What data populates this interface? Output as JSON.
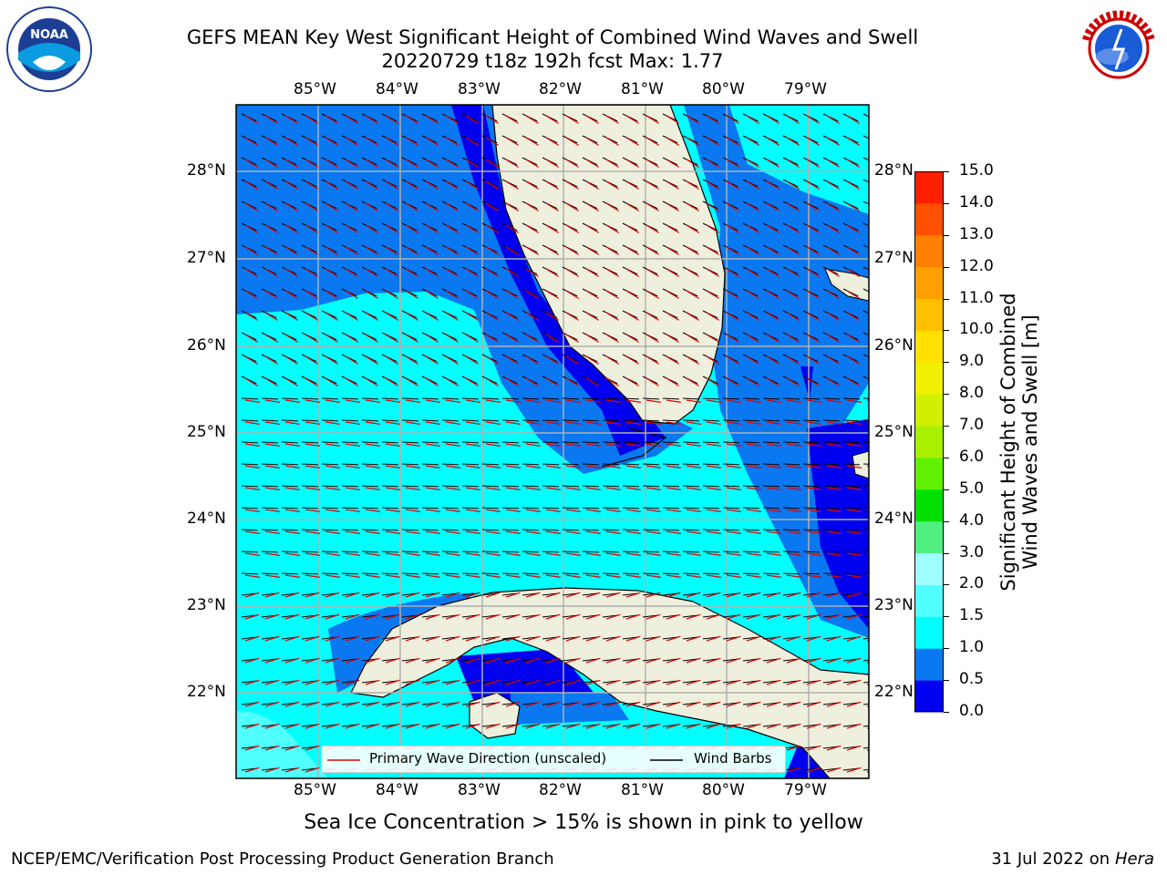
{
  "header": {
    "title_line1": "GEFS MEAN Key West Significant Height of Combined Wind Waves and Swell",
    "title_line2": "20220729 t18z 192h fcst   Max: 1.77"
  },
  "logos": {
    "left": "NOAA",
    "right": "NATIONAL WEATHER SERVICE"
  },
  "map": {
    "lon_labels": [
      "85°W",
      "84°W",
      "83°W",
      "82°W",
      "81°W",
      "80°W",
      "79°W"
    ],
    "lat_labels": [
      "28°N",
      "27°N",
      "26°N",
      "25°N",
      "24°N",
      "23°N",
      "22°N"
    ],
    "legend": {
      "primary_wave": "Primary Wave Direction (unscaled)",
      "wind_barbs": "Wind Barbs"
    }
  },
  "colorbar": {
    "label_line1": "Significant Height of Combined",
    "label_line2": "Wind Waves and Swell [m]",
    "ticks": [
      "15.0",
      "14.0",
      "13.0",
      "12.0",
      "11.0",
      "10.0",
      "9.0",
      "8.0",
      "7.0",
      "6.0",
      "5.0",
      "4.0",
      "3.0",
      "2.0",
      "1.5",
      "1.0",
      "0.5",
      "0.0"
    ],
    "colors": [
      "#0000f0",
      "#0a78f0",
      "#00ffff",
      "#50ffff",
      "#a0ffff",
      "#50f080",
      "#00e000",
      "#60f000",
      "#a8f000",
      "#d0f000",
      "#f0f000",
      "#ffe000",
      "#ffc000",
      "#ffa000",
      "#ff8000",
      "#ff5000",
      "#ff2000",
      "#ff0000"
    ]
  },
  "footer": {
    "note": "Sea Ice Concentration > 15% is shown in pink to yellow",
    "credit": "NCEP/EMC/Verification Post Processing Product Generation Branch",
    "date": "31 Jul 2022 on ",
    "machine": "Hera"
  }
}
